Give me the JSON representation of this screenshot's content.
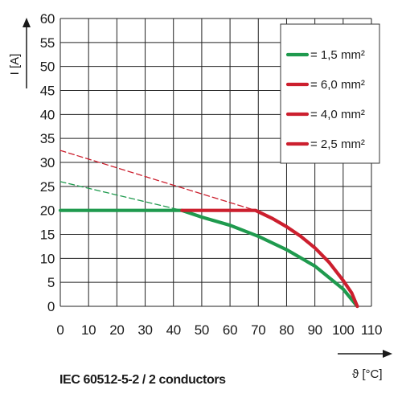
{
  "chart_data": {
    "type": "line",
    "title": "",
    "caption": "IEC 60512-5-2 / 2 conductors",
    "xlabel": "ϑ [°C]",
    "ylabel": "I [A]",
    "xlim": [
      0,
      110
    ],
    "ylim": [
      0,
      60
    ],
    "x_ticks": [
      "0",
      "10",
      "20",
      "30",
      "40",
      "50",
      "60",
      "70",
      "80",
      "90",
      "100",
      "110"
    ],
    "y_ticks": [
      "0",
      "5",
      "10",
      "15",
      "20",
      "25",
      "30",
      "35",
      "40",
      "45",
      "50",
      "55",
      "60"
    ],
    "grid": true,
    "legend_position": "top-right",
    "series": [
      {
        "name": "= 1,5 mm²",
        "color": "#1f9a4e",
        "style": "solid",
        "points": [
          [
            0,
            20
          ],
          [
            43,
            20
          ],
          [
            50,
            18.6
          ],
          [
            60,
            16.9
          ],
          [
            70,
            14.6
          ],
          [
            80,
            11.8
          ],
          [
            90,
            8.4
          ],
          [
            100,
            3.6
          ],
          [
            103,
            1.4
          ],
          [
            105,
            0
          ]
        ]
      },
      {
        "name": "= 6,0 mm²",
        "color": "#cc1f2e",
        "style": "solid",
        "points": [
          [
            43,
            20
          ],
          [
            69,
            20
          ],
          [
            75,
            18.3
          ],
          [
            80,
            16.6
          ],
          [
            85,
            14.6
          ],
          [
            90,
            12.2
          ],
          [
            95,
            9.2
          ],
          [
            100,
            5.4
          ],
          [
            103,
            2.8
          ],
          [
            105,
            0
          ]
        ]
      },
      {
        "name": "= 4,0 mm²",
        "color": "#cc1f2e",
        "style": "solid",
        "points": []
      },
      {
        "name": "= 2,5 mm²",
        "color": "#cc1f2e",
        "style": "solid",
        "points": []
      },
      {
        "name": "",
        "color": "#1f9a4e",
        "style": "dashed",
        "points": [
          [
            0,
            26
          ],
          [
            43,
            20
          ]
        ]
      },
      {
        "name": "",
        "color": "#cc1f2e",
        "style": "dashed",
        "points": [
          [
            0,
            32.5
          ],
          [
            69,
            20
          ]
        ]
      }
    ]
  }
}
